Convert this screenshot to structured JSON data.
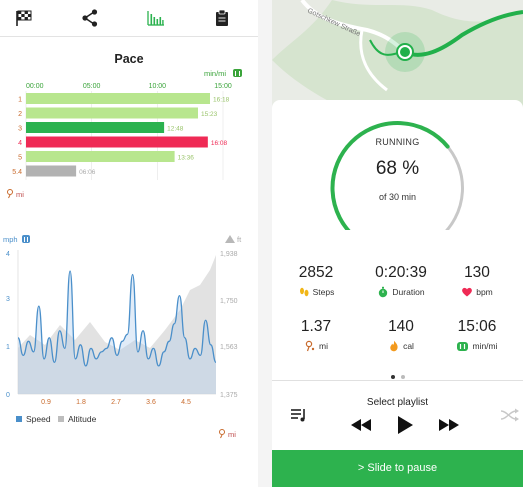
{
  "left": {
    "tabs": [
      "checkered-flag-icon",
      "share-icon",
      "chart-icon",
      "clipboard-icon"
    ],
    "pace": {
      "title": "Pace",
      "unit": "min/mi",
      "axis_ticks": [
        "00:00",
        "05:00",
        "10:00",
        "15:00"
      ],
      "distance_unit": "mi",
      "rows": [
        {
          "label": "1",
          "time": "16:18",
          "value": 16.3,
          "color": "#b8e68e"
        },
        {
          "label": "2",
          "time": "15:23",
          "value": 15.38,
          "color": "#b8e68e"
        },
        {
          "label": "3",
          "time": "12:48",
          "value": 12.8,
          "color": "#2bb24f"
        },
        {
          "label": "4",
          "time": "16:08",
          "value": 16.13,
          "color": "#ef2a55"
        },
        {
          "label": "5",
          "time": "13:36",
          "value": 13.6,
          "color": "#b8e68e"
        },
        {
          "label": "5.4",
          "time": "06:06",
          "value": 6.1,
          "color": "#b2b2b2"
        }
      ]
    },
    "speed_chart": {
      "left_unit": "mph",
      "right_unit": "ft",
      "left_ticks": [
        "4",
        "3",
        "1",
        "0"
      ],
      "right_ticks": [
        "1,938",
        "1,750",
        "1,563",
        "1,375"
      ],
      "x_ticks": [
        "0.9",
        "1.8",
        "2.7",
        "3.6",
        "4.5"
      ],
      "legend_speed": "Speed",
      "legend_altitude": "Altitude",
      "distance_unit": "mi",
      "speed_color": "#4a8fca",
      "altitude_color": "#c8c8c8"
    }
  },
  "right": {
    "map_road": "Gotschkew Straße",
    "status": "RUNNING",
    "percent": "68 %",
    "percent_value": 0.68,
    "of_label": "of 30 min",
    "stats": [
      {
        "value": "2852",
        "label": "Steps",
        "icon": "footprints-icon"
      },
      {
        "value": "0:20:39",
        "label": "Duration",
        "icon": "stopwatch-icon"
      },
      {
        "value": "130",
        "label": "bpm",
        "icon": "heart-icon"
      },
      {
        "value": "1.37",
        "label": "mi",
        "icon": "location-pin-icon"
      },
      {
        "value": "140",
        "label": "cal",
        "icon": "flame-icon"
      },
      {
        "value": "15:06",
        "label": "min/mi",
        "icon": "runner-icon"
      }
    ],
    "playlist_label": "Select playlist",
    "slide_label": "> Slide to pause",
    "accent": "#2db24e"
  }
}
